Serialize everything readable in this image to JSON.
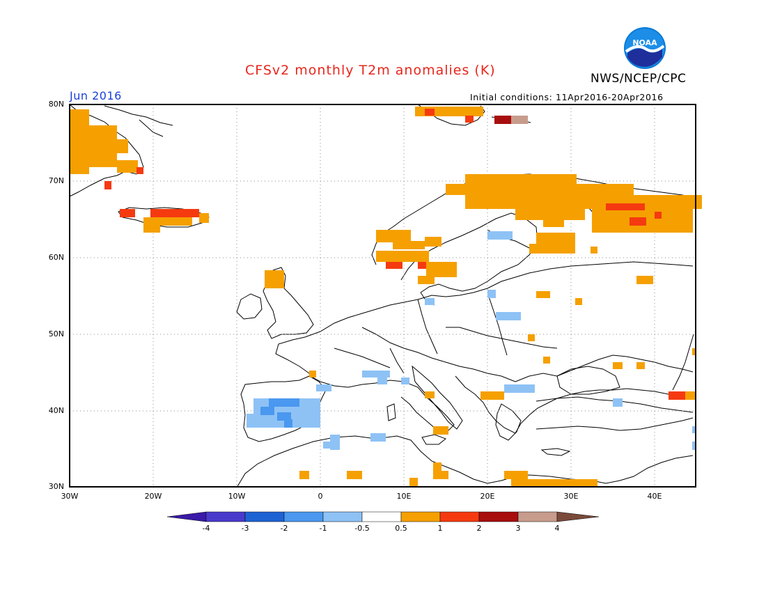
{
  "header": {
    "title": "CFSv2 monthly T2m anomalies (K)",
    "agency": "NWS/NCEP/CPC",
    "period": "Jun 2016",
    "initial_conditions": "Initial conditions: 11Apr2016-20Apr2016",
    "logo_text": "NOAA"
  },
  "map": {
    "lat_labels": [
      "80N",
      "70N",
      "60N",
      "50N",
      "40N",
      "30N"
    ],
    "lon_labels": [
      "30W",
      "20W",
      "10W",
      "0",
      "10E",
      "20E",
      "30E",
      "40E"
    ],
    "extent": {
      "lon": [
        -30,
        45
      ],
      "lat": [
        30,
        80
      ]
    },
    "grid": "dotted 10 degree",
    "colors": {
      "warm1": "#f5a000",
      "warm2": "#f53a10",
      "warm3": "#a80e0e",
      "warm4": "#c79c8c",
      "cool1": "#8ec2f5",
      "cool2": "#4a98ef",
      "cool3": "#1e63d4",
      "cool4": "#4a3acc"
    }
  },
  "colorbar": {
    "labels": [
      "-4",
      "-3",
      "-2",
      "-1",
      "-0.5",
      "0.5",
      "1",
      "2",
      "3",
      "4"
    ],
    "colors": [
      "#3a1aa8",
      "#4a3acc",
      "#1e63d4",
      "#4a98ef",
      "#8ec2f5",
      "#ffffff",
      "#f5a000",
      "#f53a10",
      "#a80e0e",
      "#c79c8c",
      "#7a4a3a"
    ]
  }
}
